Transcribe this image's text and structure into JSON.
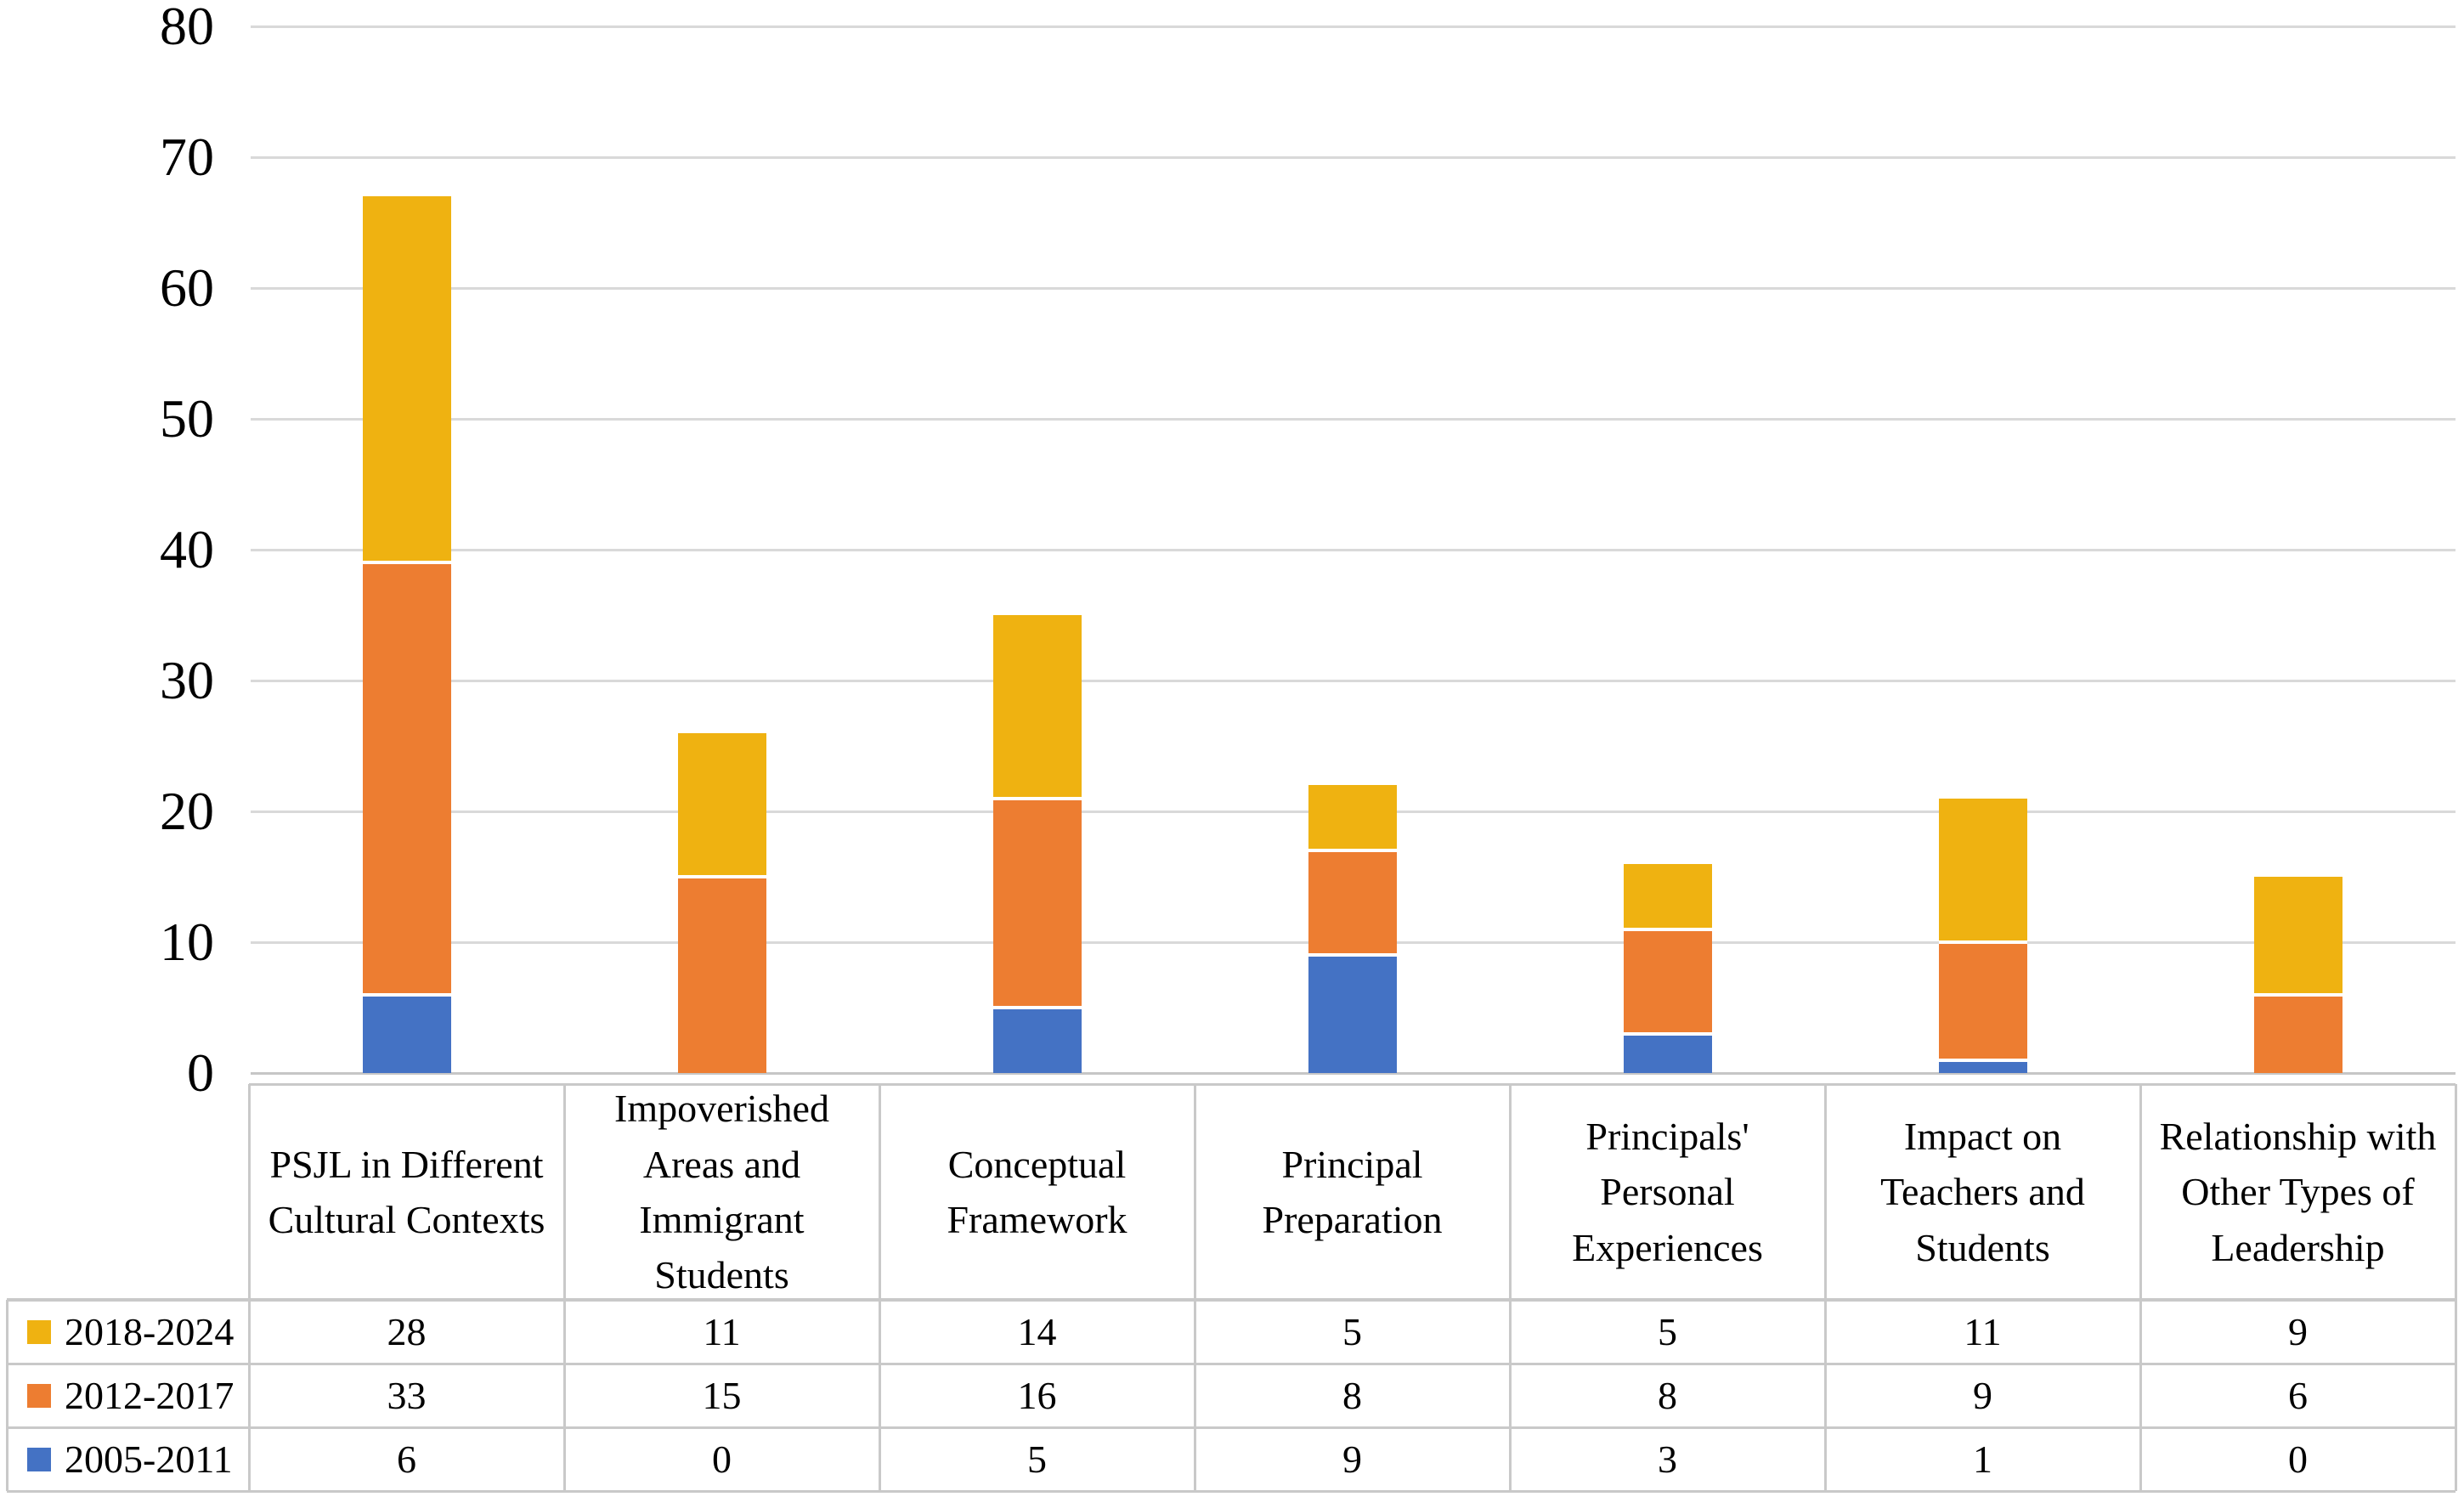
{
  "figure_title": "",
  "colors": {
    "background": "#ffffff",
    "gridline": "#d9d9d9",
    "axis_line": "#c6c6c6",
    "table_border": "#c9c9c9",
    "text": "#000000"
  },
  "chart_data": {
    "type": "bar",
    "stacked": true,
    "orientation": "vertical",
    "title": "",
    "xlabel": "",
    "ylabel": "",
    "grid": "horizontal",
    "legend_position": "left-of-data-table-rows",
    "data_table_shown": true,
    "categories": [
      "PSJL in Different Cultural Contexts",
      "Impoverished Areas and Immigrant Students",
      "Conceptual Framework",
      "Principal Preparation",
      "Principals' Personal Experiences",
      "Impact on Teachers and Students",
      "Relationship with Other Types of Leadership"
    ],
    "series": [
      {
        "name": "2018-2024",
        "color": "#efb211",
        "values": [
          28,
          11,
          14,
          5,
          5,
          11,
          9
        ]
      },
      {
        "name": "2012-2017",
        "color": "#ed7d31",
        "values": [
          33,
          15,
          16,
          8,
          8,
          9,
          6
        ]
      },
      {
        "name": "2005-2011",
        "color": "#4472c4",
        "values": [
          6,
          0,
          5,
          9,
          3,
          1,
          0
        ]
      }
    ],
    "stack_order_bottom_to_top": [
      "2005-2011",
      "2012-2017",
      "2018-2024"
    ],
    "y_axis": {
      "min": 0,
      "max": 80,
      "step": 10,
      "tick_labels": [
        "0",
        "10",
        "20",
        "30",
        "40",
        "50",
        "60",
        "70",
        "80"
      ]
    }
  }
}
